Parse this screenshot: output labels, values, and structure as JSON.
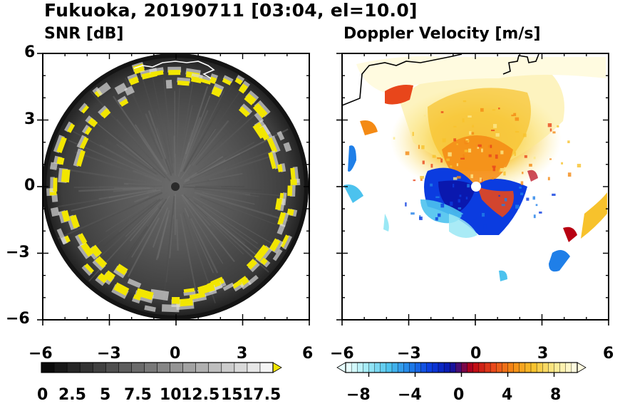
{
  "header": {
    "title": "Fukuoka, 20190711 [03:04, el=10.0]"
  },
  "chart_data": [
    {
      "type": "heatmap",
      "title": "SNR [dB]",
      "x_ticks": [
        "−6",
        "−3",
        "0",
        "3",
        "6"
      ],
      "y_ticks": [
        "6",
        "3",
        "0",
        "−3",
        "−6"
      ],
      "xlim": [
        -6,
        6
      ],
      "ylim": [
        -6,
        6
      ],
      "colorbar": {
        "type": "grayscale",
        "range": [
          0,
          18
        ],
        "labels": [
          "0",
          "2.5",
          "5",
          "7.5",
          "10",
          "12.5",
          "15",
          "17.5"
        ],
        "over_color": "#f2e600"
      },
      "colors": {
        "background": "#4a4a4a",
        "center": "#5f5f5f",
        "edge_high": "#f2e600"
      }
    },
    {
      "type": "heatmap",
      "title": "Doppler Velocity [m/s]",
      "x_ticks": [
        "−6",
        "−3",
        "0",
        "3",
        "6"
      ],
      "y_ticks": [
        "6",
        "3",
        "0",
        "−3",
        "−6"
      ],
      "xlim": [
        -6,
        6
      ],
      "ylim": [
        -6,
        6
      ],
      "colorbar": {
        "type": "diverging",
        "range": [
          -10,
          10
        ],
        "labels": [
          "−8",
          "−4",
          "0",
          "4",
          "8"
        ],
        "colors": [
          "#e8ffff",
          "#9ae8f5",
          "#4cc2ee",
          "#1f7fe8",
          "#0b3ce0",
          "#0a14a8",
          "#b80012",
          "#e8461b",
          "#f48a14",
          "#f7c22c",
          "#fbe98a",
          "#fffbe0"
        ]
      }
    }
  ]
}
